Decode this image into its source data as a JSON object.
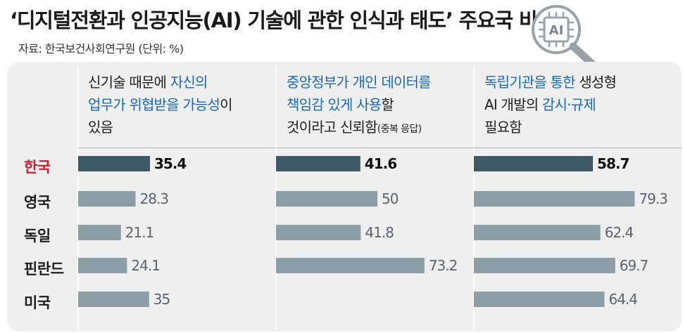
{
  "title": "‘디지털전환과 인공지능(AI) 기술에 관한 인식과 태도’ 주요국 비교",
  "source": "자료: 한국보건사회연구원 (단위: %)",
  "logo_text": "AI",
  "logo_icon": "magnifier-chip-icon",
  "colors": {
    "korea_bar": "#3f5a66",
    "other_bar": "#8e9ea6",
    "korea_text": "#c8202e",
    "highlight_text": "#1a67b3",
    "panel_bg": "#efefef"
  },
  "headers": [
    [
      [
        {
          "t": "신기술 때문에 "
        },
        {
          "t": "자신의",
          "hl": true
        }
      ],
      [
        {
          "t": "업무가 위협받을 가능성",
          "hl": true
        },
        {
          "t": "이"
        }
      ],
      [
        {
          "t": "있음"
        }
      ]
    ],
    [
      [
        {
          "t": "중앙정부가 개인 데이터를",
          "hl": true
        }
      ],
      [
        {
          "t": "책임감 있게 사용",
          "hl": true
        },
        {
          "t": "할"
        }
      ],
      [
        {
          "t": "것이라고 신뢰함"
        },
        {
          "t": "(중복 응답)",
          "note": true
        }
      ]
    ],
    [
      [
        {
          "t": "독립기관을 통한",
          "hl": true
        },
        {
          "t": " 생성형"
        }
      ],
      [
        {
          "t": "AI 개발의 "
        },
        {
          "t": "감시·규제",
          "hl": true
        }
      ],
      [
        {
          "t": "필요함"
        }
      ]
    ]
  ],
  "chart_data": {
    "type": "bar",
    "orientation": "horizontal",
    "title": "‘디지털전환과 인공지능(AI) 기술에 관한 인식과 태도’ 주요국 비교",
    "unit": "%",
    "categories": [
      "한국",
      "영국",
      "독일",
      "핀란드",
      "미국"
    ],
    "highlight_category": "한국",
    "series": [
      {
        "name": "신기술 때문에 자신의 업무가 위협받을 가능성이 있음",
        "values": [
          35.4,
          28.3,
          21.1,
          24.1,
          35
        ]
      },
      {
        "name": "중앙정부가 개인 데이터를 책임감 있게 사용할 것이라고 신뢰함(중복 응답)",
        "values": [
          41.6,
          50,
          41.8,
          73.2,
          null
        ]
      },
      {
        "name": "독립기관을 통한 생성형 AI 개발의 감시·규제 필요함",
        "values": [
          58.7,
          79.3,
          62.4,
          69.7,
          64.4
        ]
      }
    ],
    "value_labels": [
      [
        "35.4",
        "28.3",
        "21.1",
        "24.1",
        "35"
      ],
      [
        "41.6",
        "50",
        "41.8",
        "73.2",
        ""
      ],
      [
        "58.7",
        "79.3",
        "62.4",
        "69.7",
        "64.4"
      ]
    ],
    "xlim": [
      0,
      100
    ],
    "grid": false,
    "legend": "none"
  }
}
